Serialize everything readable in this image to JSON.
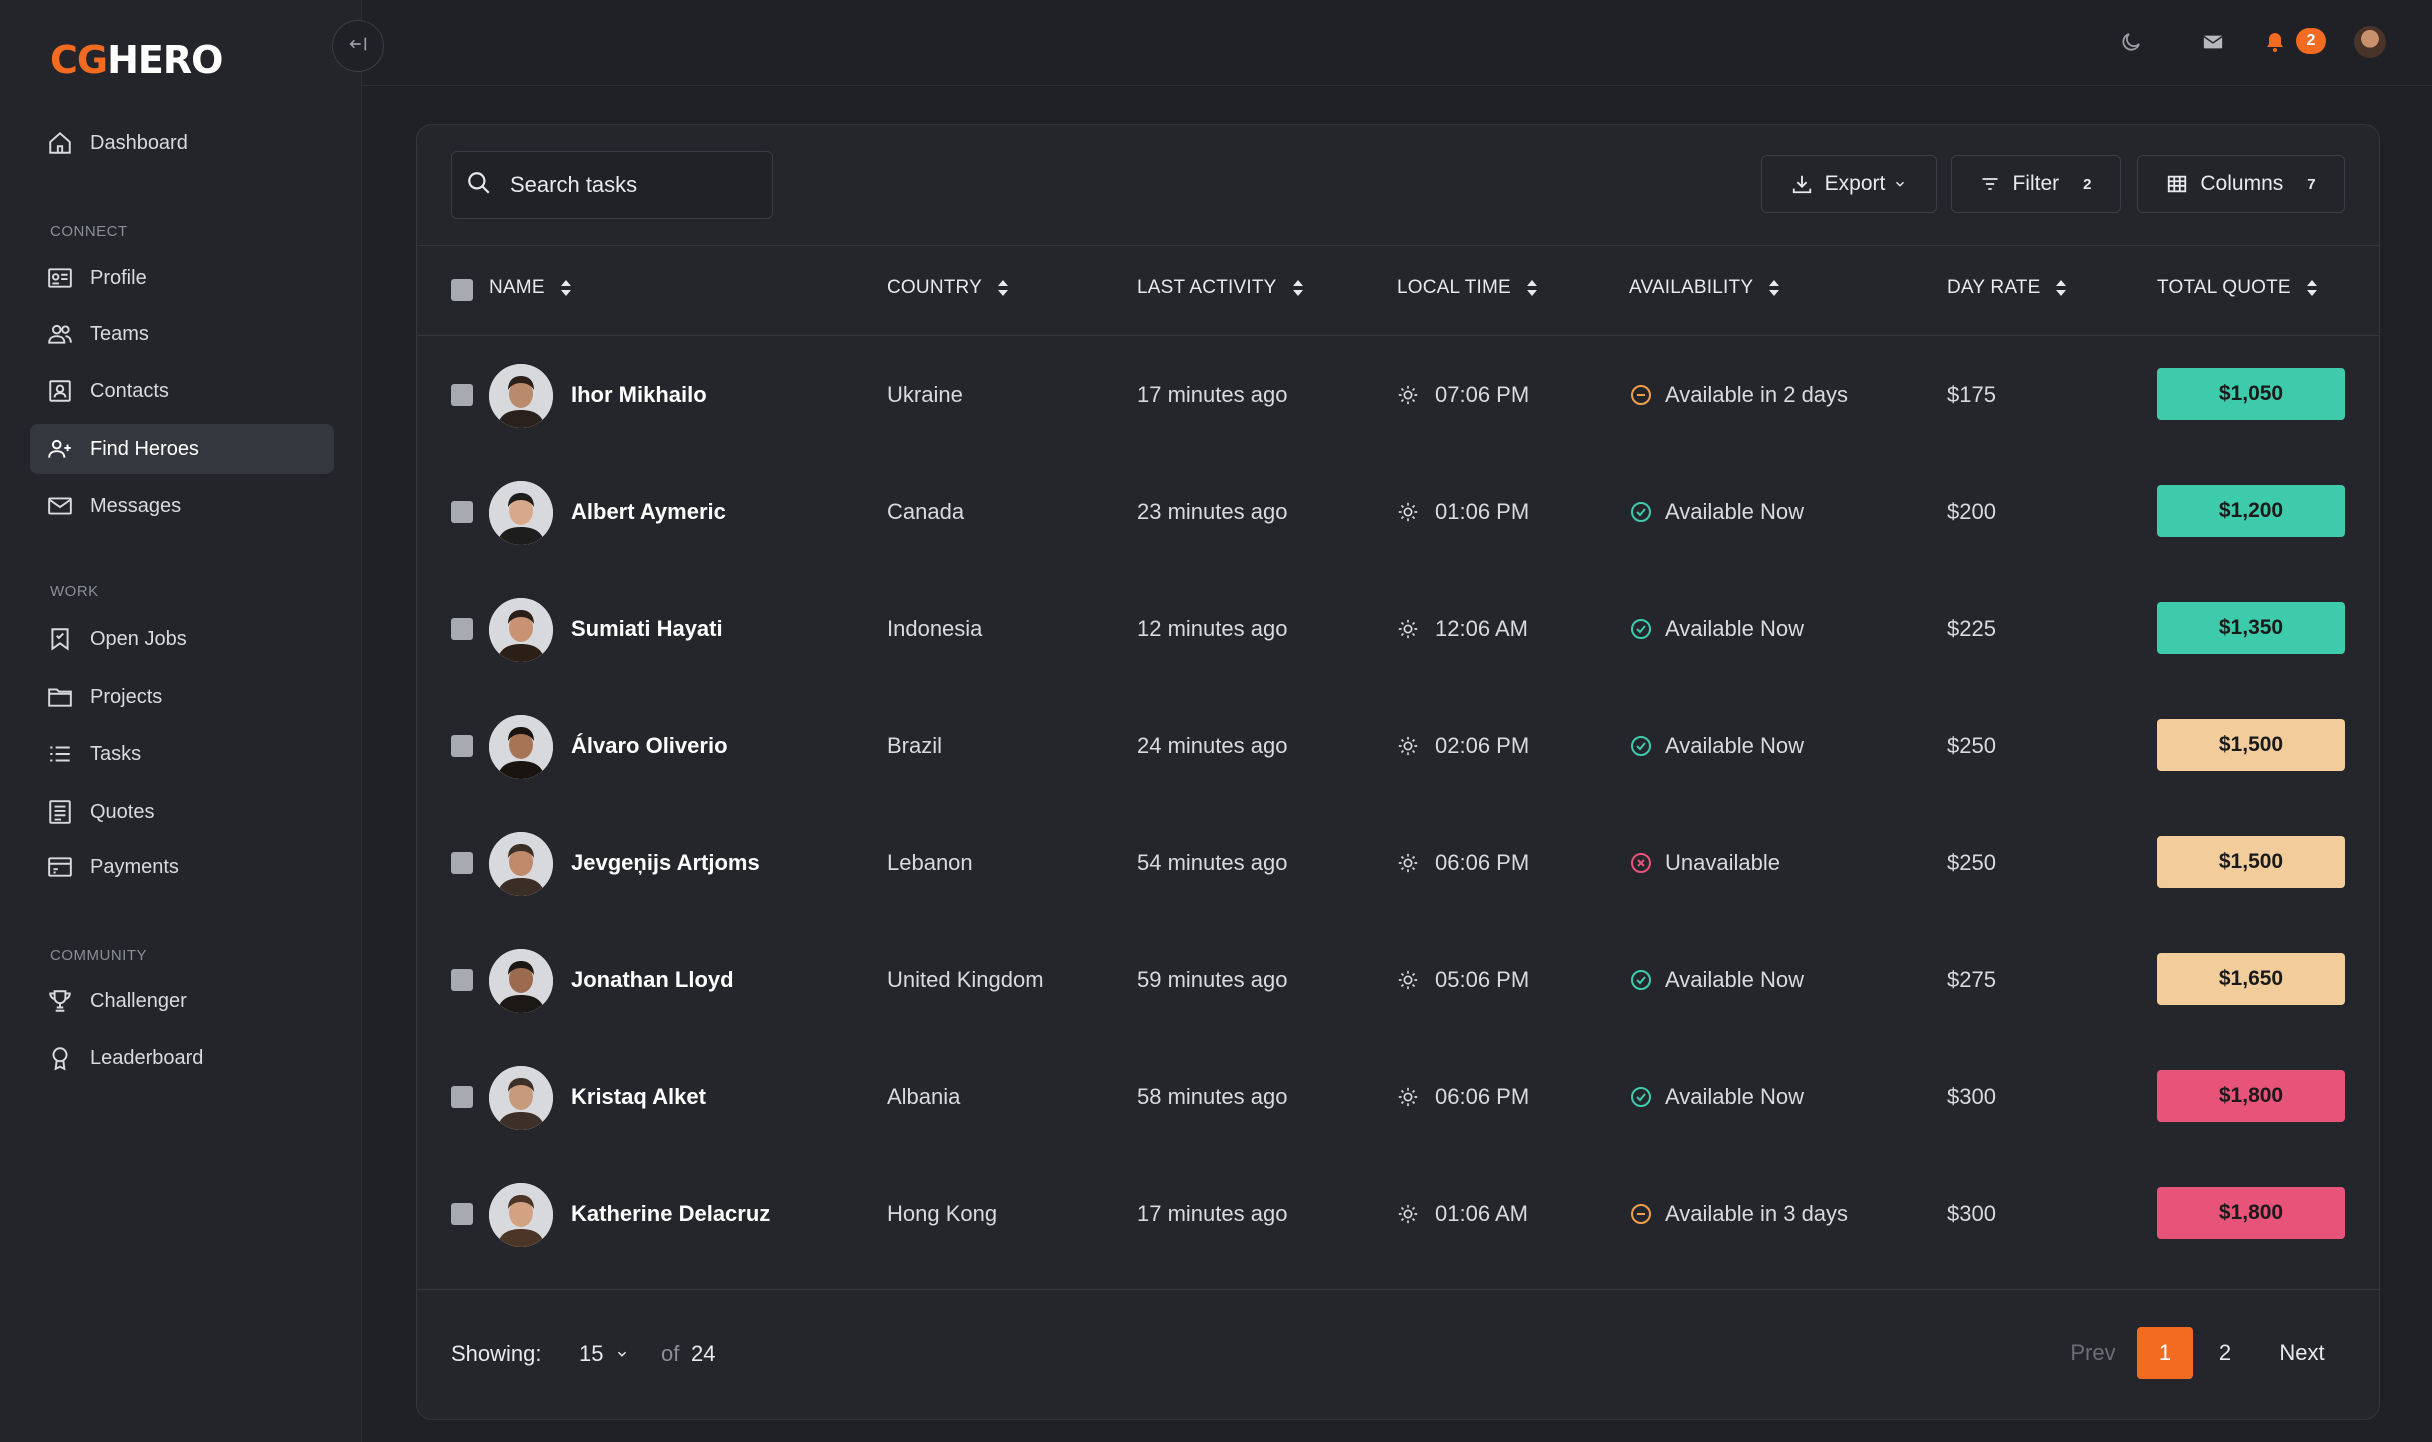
{
  "brand": {
    "part1": "CG",
    "part2": "HERO"
  },
  "sidebar": {
    "top_item": {
      "label": "Dashboard",
      "icon": "home-icon"
    },
    "sections": [
      {
        "title": "CONNECT",
        "items": [
          {
            "label": "Profile",
            "icon": "id-card-icon"
          },
          {
            "label": "Teams",
            "icon": "users-icon"
          },
          {
            "label": "Contacts",
            "icon": "contact-book-icon"
          },
          {
            "label": "Find Heroes",
            "icon": "user-plus-icon",
            "active": true
          },
          {
            "label": "Messages",
            "icon": "envelope-icon"
          }
        ]
      },
      {
        "title": "WORK",
        "items": [
          {
            "label": "Open Jobs",
            "icon": "bookmark-icon"
          },
          {
            "label": "Projects",
            "icon": "folder-icon"
          },
          {
            "label": "Tasks",
            "icon": "list-icon"
          },
          {
            "label": "Quotes",
            "icon": "receipt-icon"
          },
          {
            "label": "Payments",
            "icon": "wallet-icon"
          }
        ]
      },
      {
        "title": "COMMUNITY",
        "items": [
          {
            "label": "Challenger",
            "icon": "trophy-icon"
          },
          {
            "label": "Leaderboard",
            "icon": "medal-icon"
          }
        ]
      }
    ]
  },
  "topbar": {
    "notification_count": "2",
    "icons": [
      "moon-icon",
      "mail-icon",
      "bell-icon",
      "avatar"
    ]
  },
  "toolbar": {
    "search_placeholder": "Search tasks",
    "export_label": "Export",
    "filter_label": "Filter",
    "filter_count": "2",
    "columns_label": "Columns",
    "columns_count": "7"
  },
  "table": {
    "headers": [
      "NAME",
      "COUNTRY",
      "LAST ACTIVITY",
      "LOCAL TIME",
      "AVAILABILITY",
      "DAY RATE",
      "TOTAL QUOTE"
    ],
    "rows": [
      {
        "name": "Ihor Mikhailo",
        "country": "Ukraine",
        "activity": "17 minutes ago",
        "time": "07:06 PM",
        "availability": "Available in 2 days",
        "status": "later",
        "rate": "$175",
        "quote": "$1,050",
        "tier": "green"
      },
      {
        "name": "Albert Aymeric",
        "country": "Canada",
        "activity": "23 minutes ago",
        "time": "01:06 PM",
        "availability": "Available Now",
        "status": "now",
        "rate": "$200",
        "quote": "$1,200",
        "tier": "green"
      },
      {
        "name": "Sumiati Hayati",
        "country": "Indonesia",
        "activity": "12 minutes ago",
        "time": "12:06 AM",
        "availability": "Available Now",
        "status": "now",
        "rate": "$225",
        "quote": "$1,350",
        "tier": "green"
      },
      {
        "name": "Álvaro Oliverio",
        "country": "Brazil",
        "activity": "24 minutes ago",
        "time": "02:06 PM",
        "availability": "Available Now",
        "status": "now",
        "rate": "$250",
        "quote": "$1,500",
        "tier": "peach"
      },
      {
        "name": "Jevgeņijs Artjoms",
        "country": "Lebanon",
        "activity": "54 minutes ago",
        "time": "06:06 PM",
        "availability": "Unavailable",
        "status": "no",
        "rate": "$250",
        "quote": "$1,500",
        "tier": "peach"
      },
      {
        "name": "Jonathan Lloyd",
        "country": "United Kingdom",
        "activity": "59 minutes ago",
        "time": "05:06 PM",
        "availability": "Available Now",
        "status": "now",
        "rate": "$275",
        "quote": "$1,650",
        "tier": "peach"
      },
      {
        "name": "Kristaq Alket",
        "country": "Albania",
        "activity": "58 minutes ago",
        "time": "06:06 PM",
        "availability": "Available Now",
        "status": "now",
        "rate": "$300",
        "quote": "$1,800",
        "tier": "pink"
      },
      {
        "name": "Katherine Delacruz",
        "country": "Hong Kong",
        "activity": "17 minutes ago",
        "time": "01:06 AM",
        "availability": "Available in 3 days",
        "status": "later",
        "rate": "$300",
        "quote": "$1,800",
        "tier": "pink"
      }
    ]
  },
  "colors": {
    "green": "#3ecbab",
    "peach": "#f3cc9c",
    "pink": "#e8537a",
    "accent": "#f26b21",
    "status_now": "#3ecbab",
    "status_later": "#f0a04b",
    "status_no": "#e8537a"
  },
  "footer": {
    "showing_label": "Showing:",
    "page_size": "15",
    "of_label": "of",
    "total": "24",
    "prev_label": "Prev",
    "pages": [
      "1",
      "2"
    ],
    "current_page": "1",
    "next_label": "Next"
  }
}
